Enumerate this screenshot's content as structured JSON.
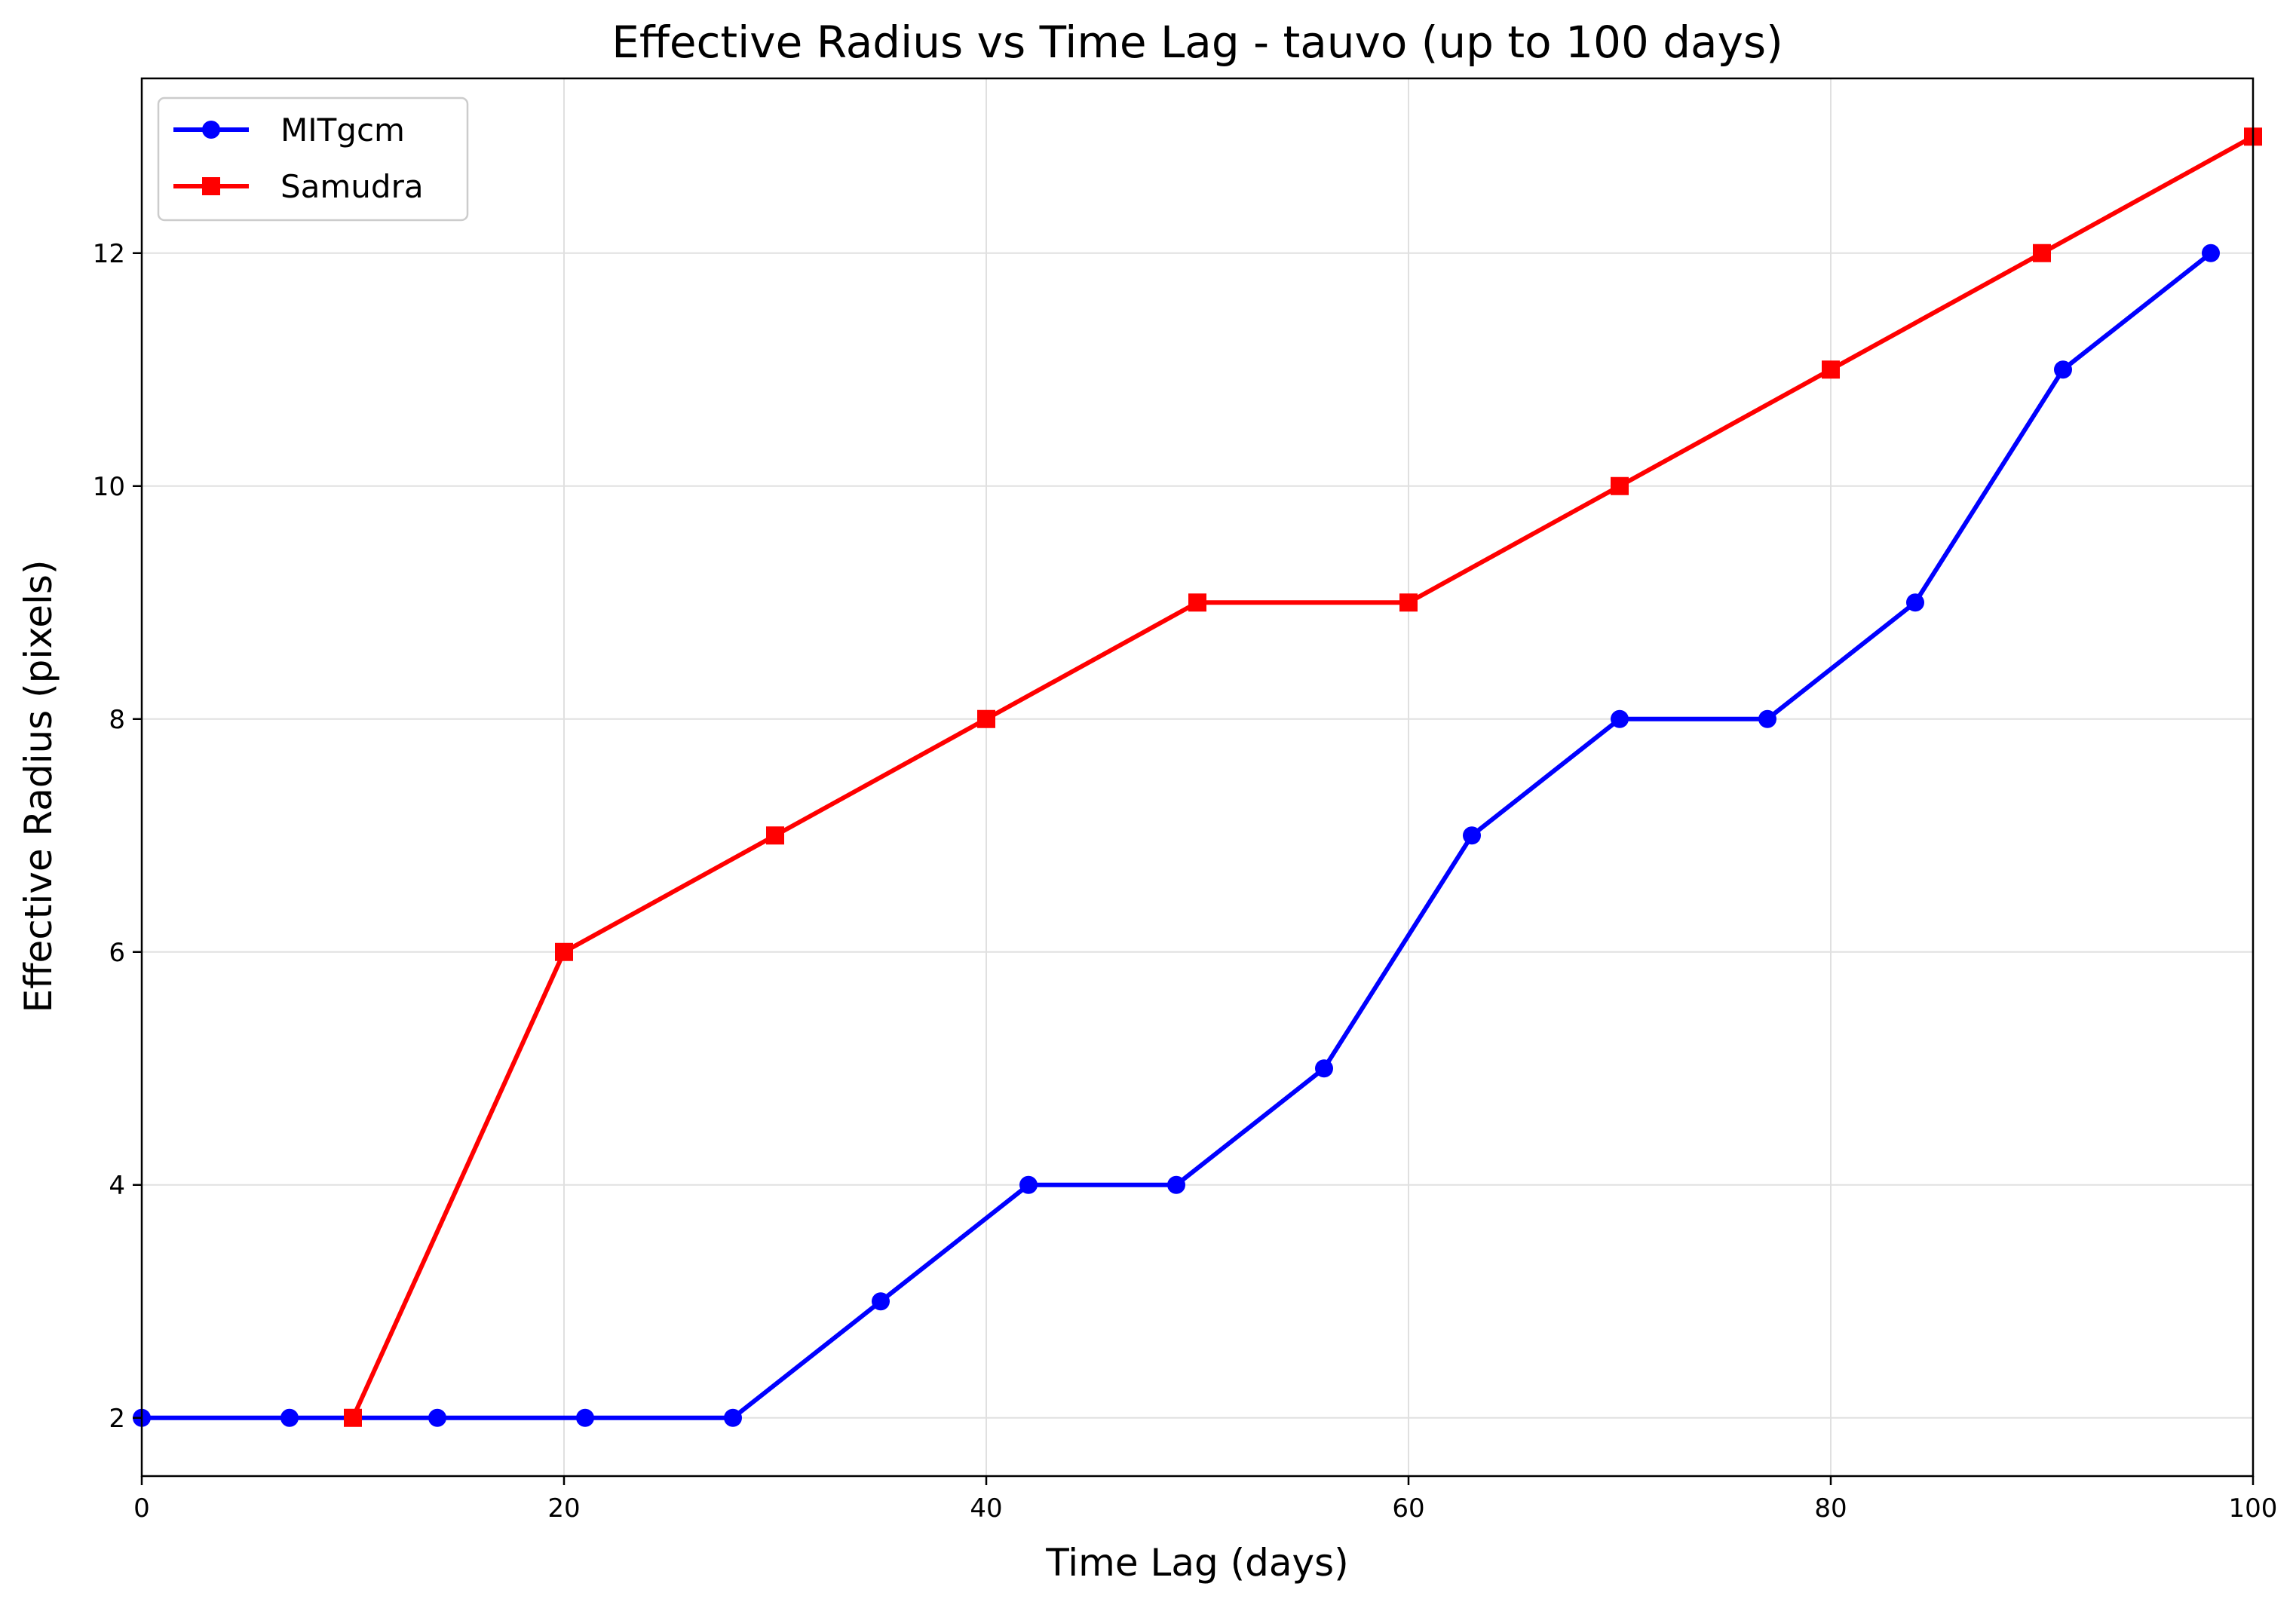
{
  "chart_data": {
    "type": "line",
    "title": "Effective Radius vs Time Lag - tauvo (up to 100 days)",
    "xlabel": "Time Lag (days)",
    "ylabel": "Effective Radius (pixels)",
    "xlim": [
      0,
      100
    ],
    "ylim": [
      1.5,
      13.5
    ],
    "xticks": [
      0,
      20,
      40,
      60,
      80,
      100
    ],
    "yticks": [
      2,
      4,
      6,
      8,
      10,
      12
    ],
    "xtick_labels": [
      "0",
      "20",
      "40",
      "60",
      "80",
      "100"
    ],
    "ytick_labels": [
      "2",
      "4",
      "6",
      "8",
      "10",
      "12"
    ],
    "grid": true,
    "legend_position": "top-left",
    "series": [
      {
        "name": "MITgcm",
        "color": "#0000ff",
        "marker": "circle",
        "x": [
          0,
          7,
          14,
          21,
          28,
          35,
          42,
          49,
          56,
          63,
          70,
          77,
          84,
          91,
          98
        ],
        "y": [
          2,
          2,
          2,
          2,
          2,
          3,
          4,
          4,
          5,
          7,
          8,
          8,
          9,
          11,
          12
        ]
      },
      {
        "name": "Samudra",
        "color": "#ff0000",
        "marker": "square",
        "x": [
          10,
          20,
          30,
          40,
          50,
          60,
          70,
          80,
          90,
          100
        ],
        "y": [
          2,
          6,
          7,
          8,
          9,
          9,
          10,
          11,
          12,
          13
        ]
      }
    ]
  }
}
